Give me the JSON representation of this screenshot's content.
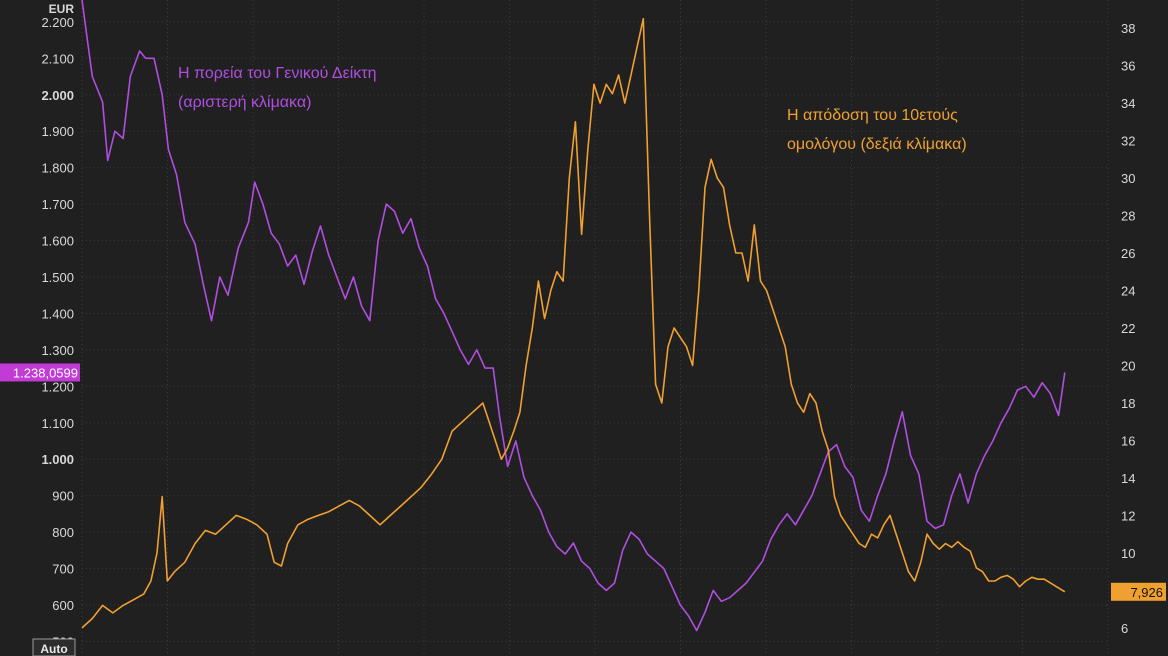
{
  "chart_data": {
    "type": "line",
    "left_axis": {
      "unit": "EUR",
      "ticks": [
        "2.200",
        "2.100",
        "2.000",
        "1.900",
        "1.800",
        "1.700",
        "1.600",
        "1.500",
        "1.400",
        "1.300",
        "1.200",
        "1.100",
        "1.000",
        "900",
        "800",
        "700",
        "600",
        "500"
      ],
      "range": [
        460,
        2260
      ]
    },
    "right_axis": {
      "ticks": [
        "38",
        "36",
        "34",
        "32",
        "30",
        "28",
        "26",
        "24",
        "22",
        "20",
        "18",
        "16",
        "14",
        "12",
        "10",
        "8",
        "6"
      ],
      "range": [
        4.5,
        39.5
      ]
    },
    "x_range": [
      0,
      100
    ],
    "bottom_label": "Auto",
    "series": [
      {
        "name": "Η πορεία του Γενικού Δείκτη (αριστερή κλίμακα)",
        "axis": "left",
        "color": "#b04ee0",
        "last_value_label": "1.238,0599",
        "points": [
          [
            0,
            2260
          ],
          [
            1,
            2050
          ],
          [
            2,
            1980
          ],
          [
            2.5,
            1820
          ],
          [
            3.2,
            1900
          ],
          [
            4,
            1880
          ],
          [
            4.7,
            2050
          ],
          [
            5.6,
            2120
          ],
          [
            6.2,
            2100
          ],
          [
            7,
            2100
          ],
          [
            7.8,
            2000
          ],
          [
            8.4,
            1850
          ],
          [
            9.2,
            1780
          ],
          [
            10,
            1650
          ],
          [
            11,
            1590
          ],
          [
            11.8,
            1480
          ],
          [
            12.6,
            1380
          ],
          [
            13.4,
            1500
          ],
          [
            14.2,
            1450
          ],
          [
            15.2,
            1580
          ],
          [
            16.2,
            1650
          ],
          [
            16.8,
            1760
          ],
          [
            17.6,
            1700
          ],
          [
            18.4,
            1620
          ],
          [
            19.2,
            1590
          ],
          [
            20,
            1530
          ],
          [
            20.8,
            1560
          ],
          [
            21.6,
            1480
          ],
          [
            22.4,
            1570
          ],
          [
            23.2,
            1640
          ],
          [
            24,
            1560
          ],
          [
            24.8,
            1500
          ],
          [
            25.6,
            1440
          ],
          [
            26.4,
            1500
          ],
          [
            27.2,
            1420
          ],
          [
            28,
            1380
          ],
          [
            28.8,
            1600
          ],
          [
            29.6,
            1700
          ],
          [
            30.4,
            1680
          ],
          [
            31.2,
            1620
          ],
          [
            32,
            1660
          ],
          [
            32.8,
            1580
          ],
          [
            33.6,
            1530
          ],
          [
            34.4,
            1440
          ],
          [
            35.2,
            1400
          ],
          [
            36,
            1350
          ],
          [
            36.8,
            1300
          ],
          [
            37.6,
            1260
          ],
          [
            38.4,
            1300
          ],
          [
            39.2,
            1250
          ],
          [
            40,
            1250
          ],
          [
            40.6,
            1120
          ],
          [
            41.4,
            980
          ],
          [
            42.2,
            1050
          ],
          [
            43,
            950
          ],
          [
            43.8,
            900
          ],
          [
            44.6,
            860
          ],
          [
            45.4,
            800
          ],
          [
            46.2,
            760
          ],
          [
            47,
            740
          ],
          [
            47.8,
            770
          ],
          [
            48.6,
            720
          ],
          [
            49.4,
            700
          ],
          [
            50.2,
            660
          ],
          [
            51,
            640
          ],
          [
            51.8,
            660
          ],
          [
            52.6,
            750
          ],
          [
            53.4,
            800
          ],
          [
            54.2,
            780
          ],
          [
            55,
            740
          ],
          [
            55.8,
            720
          ],
          [
            56.6,
            700
          ],
          [
            57.4,
            650
          ],
          [
            58.2,
            600
          ],
          [
            59,
            570
          ],
          [
            59.8,
            530
          ],
          [
            60.6,
            580
          ],
          [
            61.4,
            640
          ],
          [
            62.2,
            610
          ],
          [
            63,
            620
          ],
          [
            63.8,
            640
          ],
          [
            64.6,
            660
          ],
          [
            65.4,
            690
          ],
          [
            66.2,
            720
          ],
          [
            67,
            780
          ],
          [
            67.8,
            820
          ],
          [
            68.6,
            850
          ],
          [
            69.4,
            820
          ],
          [
            70.2,
            860
          ],
          [
            71,
            900
          ],
          [
            71.8,
            960
          ],
          [
            72.6,
            1020
          ],
          [
            73.4,
            1040
          ],
          [
            74.2,
            980
          ],
          [
            75,
            950
          ],
          [
            75.8,
            860
          ],
          [
            76.6,
            830
          ],
          [
            77.4,
            900
          ],
          [
            78.2,
            960
          ],
          [
            79,
            1050
          ],
          [
            79.8,
            1130
          ],
          [
            80.6,
            1010
          ],
          [
            81.4,
            960
          ],
          [
            82.2,
            830
          ],
          [
            83,
            810
          ],
          [
            83.8,
            820
          ],
          [
            84.6,
            900
          ],
          [
            85.4,
            960
          ],
          [
            86.2,
            880
          ],
          [
            87,
            960
          ],
          [
            87.8,
            1010
          ],
          [
            88.6,
            1050
          ],
          [
            89.4,
            1100
          ],
          [
            90.2,
            1140
          ],
          [
            91,
            1190
          ],
          [
            91.8,
            1200
          ],
          [
            92.6,
            1170
          ],
          [
            93.4,
            1210
          ],
          [
            94.2,
            1180
          ],
          [
            95,
            1120
          ],
          [
            95.6,
            1238
          ]
        ]
      },
      {
        "name": "Η απόδοση του 10ετούς ομολόγου (δεξιά κλίμακα)",
        "axis": "right",
        "color": "#f0a030",
        "last_value_label": "7,926",
        "points": [
          [
            0,
            6
          ],
          [
            1,
            6.5
          ],
          [
            2,
            7.2
          ],
          [
            3,
            6.8
          ],
          [
            4,
            7.2
          ],
          [
            5,
            7.5
          ],
          [
            6,
            7.8
          ],
          [
            6.7,
            8.5
          ],
          [
            7.3,
            10
          ],
          [
            7.8,
            13
          ],
          [
            8.3,
            8.5
          ],
          [
            9,
            9
          ],
          [
            10,
            9.5
          ],
          [
            11,
            10.5
          ],
          [
            12,
            11.2
          ],
          [
            13,
            11
          ],
          [
            14,
            11.5
          ],
          [
            15,
            12
          ],
          [
            16,
            11.8
          ],
          [
            17,
            11.5
          ],
          [
            18,
            11
          ],
          [
            18.7,
            9.5
          ],
          [
            19.4,
            9.3
          ],
          [
            20,
            10.5
          ],
          [
            21,
            11.5
          ],
          [
            22,
            11.8
          ],
          [
            23,
            12
          ],
          [
            24,
            12.2
          ],
          [
            25,
            12.5
          ],
          [
            26,
            12.8
          ],
          [
            27,
            12.5
          ],
          [
            28,
            12
          ],
          [
            29,
            11.5
          ],
          [
            30,
            12
          ],
          [
            31,
            12.5
          ],
          [
            32,
            13
          ],
          [
            33,
            13.5
          ],
          [
            34,
            14.2
          ],
          [
            35,
            15
          ],
          [
            36,
            16.5
          ],
          [
            37,
            17
          ],
          [
            38,
            17.5
          ],
          [
            39,
            18
          ],
          [
            39.6,
            17
          ],
          [
            40.2,
            16
          ],
          [
            40.8,
            15
          ],
          [
            41.4,
            15.6
          ],
          [
            42,
            16.5
          ],
          [
            42.6,
            17.5
          ],
          [
            43.2,
            20
          ],
          [
            43.8,
            22
          ],
          [
            44.4,
            24.5
          ],
          [
            45,
            22.5
          ],
          [
            45.6,
            24
          ],
          [
            46.2,
            25
          ],
          [
            46.8,
            24.5
          ],
          [
            47.4,
            30
          ],
          [
            48,
            33
          ],
          [
            48.6,
            27
          ],
          [
            49.2,
            31.5
          ],
          [
            49.8,
            35
          ],
          [
            50.4,
            34
          ],
          [
            51,
            35
          ],
          [
            51.6,
            34.5
          ],
          [
            52.2,
            35.5
          ],
          [
            52.8,
            34
          ],
          [
            53.4,
            35.5
          ],
          [
            54,
            37
          ],
          [
            54.6,
            38.5
          ],
          [
            55.2,
            28
          ],
          [
            55.8,
            19
          ],
          [
            56.4,
            18
          ],
          [
            57,
            21
          ],
          [
            57.6,
            22
          ],
          [
            58.2,
            21.5
          ],
          [
            58.8,
            21
          ],
          [
            59.4,
            20
          ],
          [
            60,
            24
          ],
          [
            60.6,
            29.5
          ],
          [
            61.2,
            31
          ],
          [
            61.8,
            30
          ],
          [
            62.4,
            29.5
          ],
          [
            63,
            27.5
          ],
          [
            63.6,
            26
          ],
          [
            64.2,
            26
          ],
          [
            64.8,
            24.5
          ],
          [
            65.4,
            27.5
          ],
          [
            66,
            24.5
          ],
          [
            66.6,
            24
          ],
          [
            67.2,
            23
          ],
          [
            67.8,
            22
          ],
          [
            68.4,
            21
          ],
          [
            69,
            19
          ],
          [
            69.6,
            18
          ],
          [
            70.2,
            17.5
          ],
          [
            70.8,
            18.5
          ],
          [
            71.4,
            18
          ],
          [
            72,
            16.5
          ],
          [
            72.6,
            15.5
          ],
          [
            73.2,
            13
          ],
          [
            73.8,
            12
          ],
          [
            74.4,
            11.5
          ],
          [
            75,
            11
          ],
          [
            75.6,
            10.5
          ],
          [
            76.2,
            10.3
          ],
          [
            76.8,
            11
          ],
          [
            77.4,
            10.8
          ],
          [
            78,
            11.5
          ],
          [
            78.6,
            12
          ],
          [
            79.2,
            11
          ],
          [
            79.8,
            10
          ],
          [
            80.4,
            9
          ],
          [
            81,
            8.5
          ],
          [
            81.6,
            9.5
          ],
          [
            82.2,
            11
          ],
          [
            82.8,
            10.5
          ],
          [
            83.4,
            10.2
          ],
          [
            84,
            10.5
          ],
          [
            84.6,
            10.3
          ],
          [
            85.2,
            10.6
          ],
          [
            85.8,
            10.3
          ],
          [
            86.4,
            10.1
          ],
          [
            87,
            9.2
          ],
          [
            87.6,
            9
          ],
          [
            88.2,
            8.5
          ],
          [
            88.8,
            8.5
          ],
          [
            89.4,
            8.7
          ],
          [
            90,
            8.8
          ],
          [
            90.6,
            8.6
          ],
          [
            91.2,
            8.2
          ],
          [
            91.8,
            8.5
          ],
          [
            92.4,
            8.7
          ],
          [
            93,
            8.6
          ],
          [
            93.6,
            8.6
          ],
          [
            94.2,
            8.4
          ],
          [
            94.8,
            8.2
          ],
          [
            95.6,
            7.926
          ]
        ]
      }
    ],
    "annotations": [
      {
        "series": 0,
        "lines": [
          "Η πορεία του Γενικού Δείκτη",
          "(αριστερή κλίμακα)"
        ],
        "color": "#b04ee0"
      },
      {
        "series": 1,
        "lines": [
          "Η απόδοση του 10ετούς",
          "ομολόγου (δεξιά κλίμακα)"
        ],
        "color": "#f0a030"
      }
    ]
  },
  "colors": {
    "background": "#202020",
    "grid": "#3a3a3a",
    "axis_text": "#d8d8d8",
    "index_tag_bg": "#c13bd4",
    "bond_tag_bg": "#f0a030"
  }
}
